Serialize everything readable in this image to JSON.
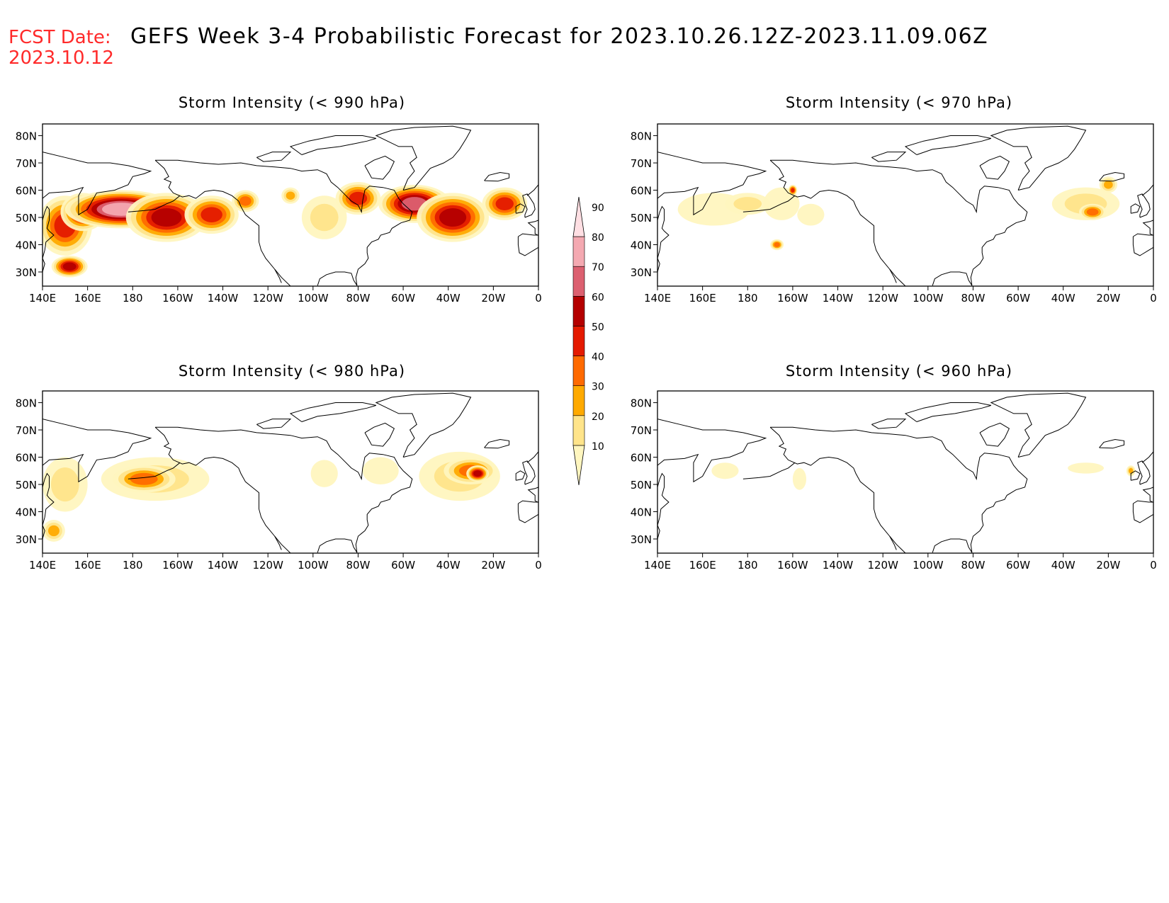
{
  "header": {
    "fcst_label": "FCST Date:",
    "fcst_date": "2023.10.12",
    "title": "GEFS Week 3-4 Probabilistic Forecast for 2023.10.26.12Z-2023.11.09.06Z"
  },
  "colors": {
    "header_red": "#ff2a2a",
    "coast": "#000000",
    "levels": [
      "#fff6bf",
      "#ffe48a",
      "#ffaa00",
      "#ff6a00",
      "#e41a00",
      "#b40000",
      "#dc6070",
      "#f4a9b1",
      "#ffdfe3"
    ]
  },
  "map_labels": {
    "lat_ticks": [
      "80N",
      "70N",
      "60N",
      "50N",
      "40N",
      "30N"
    ],
    "lon_ticks": [
      "140E",
      "160E",
      "180",
      "160W",
      "140W",
      "120W",
      "100W",
      "80W",
      "60W",
      "40W",
      "20W",
      "0"
    ]
  },
  "panels": [
    {
      "title": "Storm Intensity (< 990 hPa)",
      "blobs": [
        {
          "lon": 150,
          "lat": 47,
          "rx": 12,
          "ry": 11,
          "level": 4
        },
        {
          "lon": 158,
          "lat": 52,
          "rx": 10,
          "ry": 7,
          "level": 5
        },
        {
          "lon": 175,
          "lat": 53,
          "rx": 25,
          "ry": 7,
          "level": 7
        },
        {
          "lon": 195,
          "lat": 50,
          "rx": 18,
          "ry": 9,
          "level": 5
        },
        {
          "lon": 215,
          "lat": 51,
          "rx": 12,
          "ry": 7,
          "level": 4
        },
        {
          "lon": 230,
          "lat": 56,
          "rx": 6,
          "ry": 4,
          "level": 3
        },
        {
          "lon": 250,
          "lat": 58,
          "rx": 4,
          "ry": 3,
          "level": 2
        },
        {
          "lon": 265,
          "lat": 50,
          "rx": 10,
          "ry": 8,
          "level": 1
        },
        {
          "lon": 280,
          "lat": 57,
          "rx": 10,
          "ry": 6,
          "level": 4
        },
        {
          "lon": 305,
          "lat": 55,
          "rx": 16,
          "ry": 7,
          "level": 6
        },
        {
          "lon": 322,
          "lat": 50,
          "rx": 16,
          "ry": 9,
          "level": 5
        },
        {
          "lon": 345,
          "lat": 55,
          "rx": 10,
          "ry": 6,
          "level": 4
        },
        {
          "lon": 152,
          "lat": 32,
          "rx": 8,
          "ry": 4,
          "level": 5
        }
      ]
    },
    {
      "title": "Storm Intensity (< 970 hPa)",
      "blobs": [
        {
          "lon": 165,
          "lat": 53,
          "rx": 16,
          "ry": 6,
          "level": 0
        },
        {
          "lon": 180,
          "lat": 55,
          "rx": 10,
          "ry": 4,
          "level": 1
        },
        {
          "lon": 195,
          "lat": 55,
          "rx": 8,
          "ry": 6,
          "level": 0
        },
        {
          "lon": 200,
          "lat": 60,
          "rx": 2,
          "ry": 2,
          "level": 4
        },
        {
          "lon": 193,
          "lat": 40,
          "rx": 3,
          "ry": 2,
          "level": 3
        },
        {
          "lon": 208,
          "lat": 51,
          "rx": 6,
          "ry": 4,
          "level": 0
        },
        {
          "lon": 330,
          "lat": 55,
          "rx": 15,
          "ry": 6,
          "level": 1
        },
        {
          "lon": 333,
          "lat": 52,
          "rx": 6,
          "ry": 3,
          "level": 3
        },
        {
          "lon": 340,
          "lat": 62,
          "rx": 4,
          "ry": 3,
          "level": 2
        }
      ]
    },
    {
      "title": "Storm Intensity (< 980 hPa)",
      "blobs": [
        {
          "lon": 150,
          "lat": 50,
          "rx": 10,
          "ry": 10,
          "level": 1
        },
        {
          "lon": 145,
          "lat": 33,
          "rx": 5,
          "ry": 4,
          "level": 2
        },
        {
          "lon": 190,
          "lat": 52,
          "rx": 24,
          "ry": 8,
          "level": 1
        },
        {
          "lon": 185,
          "lat": 52,
          "rx": 14,
          "ry": 5,
          "level": 3
        },
        {
          "lon": 265,
          "lat": 54,
          "rx": 6,
          "ry": 5,
          "level": 0
        },
        {
          "lon": 290,
          "lat": 55,
          "rx": 8,
          "ry": 5,
          "level": 0
        },
        {
          "lon": 325,
          "lat": 53,
          "rx": 18,
          "ry": 9,
          "level": 1
        },
        {
          "lon": 330,
          "lat": 55,
          "rx": 12,
          "ry": 5,
          "level": 3
        },
        {
          "lon": 333,
          "lat": 54,
          "rx": 5,
          "ry": 3,
          "level": 5
        }
      ]
    },
    {
      "title": "Storm Intensity (< 960 hPa)",
      "blobs": [
        {
          "lon": 170,
          "lat": 55,
          "rx": 6,
          "ry": 3,
          "level": 0
        },
        {
          "lon": 203,
          "lat": 52,
          "rx": 3,
          "ry": 4,
          "level": 0
        },
        {
          "lon": 330,
          "lat": 56,
          "rx": 8,
          "ry": 2,
          "level": 0
        },
        {
          "lon": 350,
          "lat": 55,
          "rx": 2,
          "ry": 2,
          "level": 2
        }
      ]
    }
  ],
  "colorbar": {
    "labels": [
      "10",
      "20",
      "30",
      "40",
      "50",
      "60",
      "70",
      "80",
      "90"
    ]
  }
}
